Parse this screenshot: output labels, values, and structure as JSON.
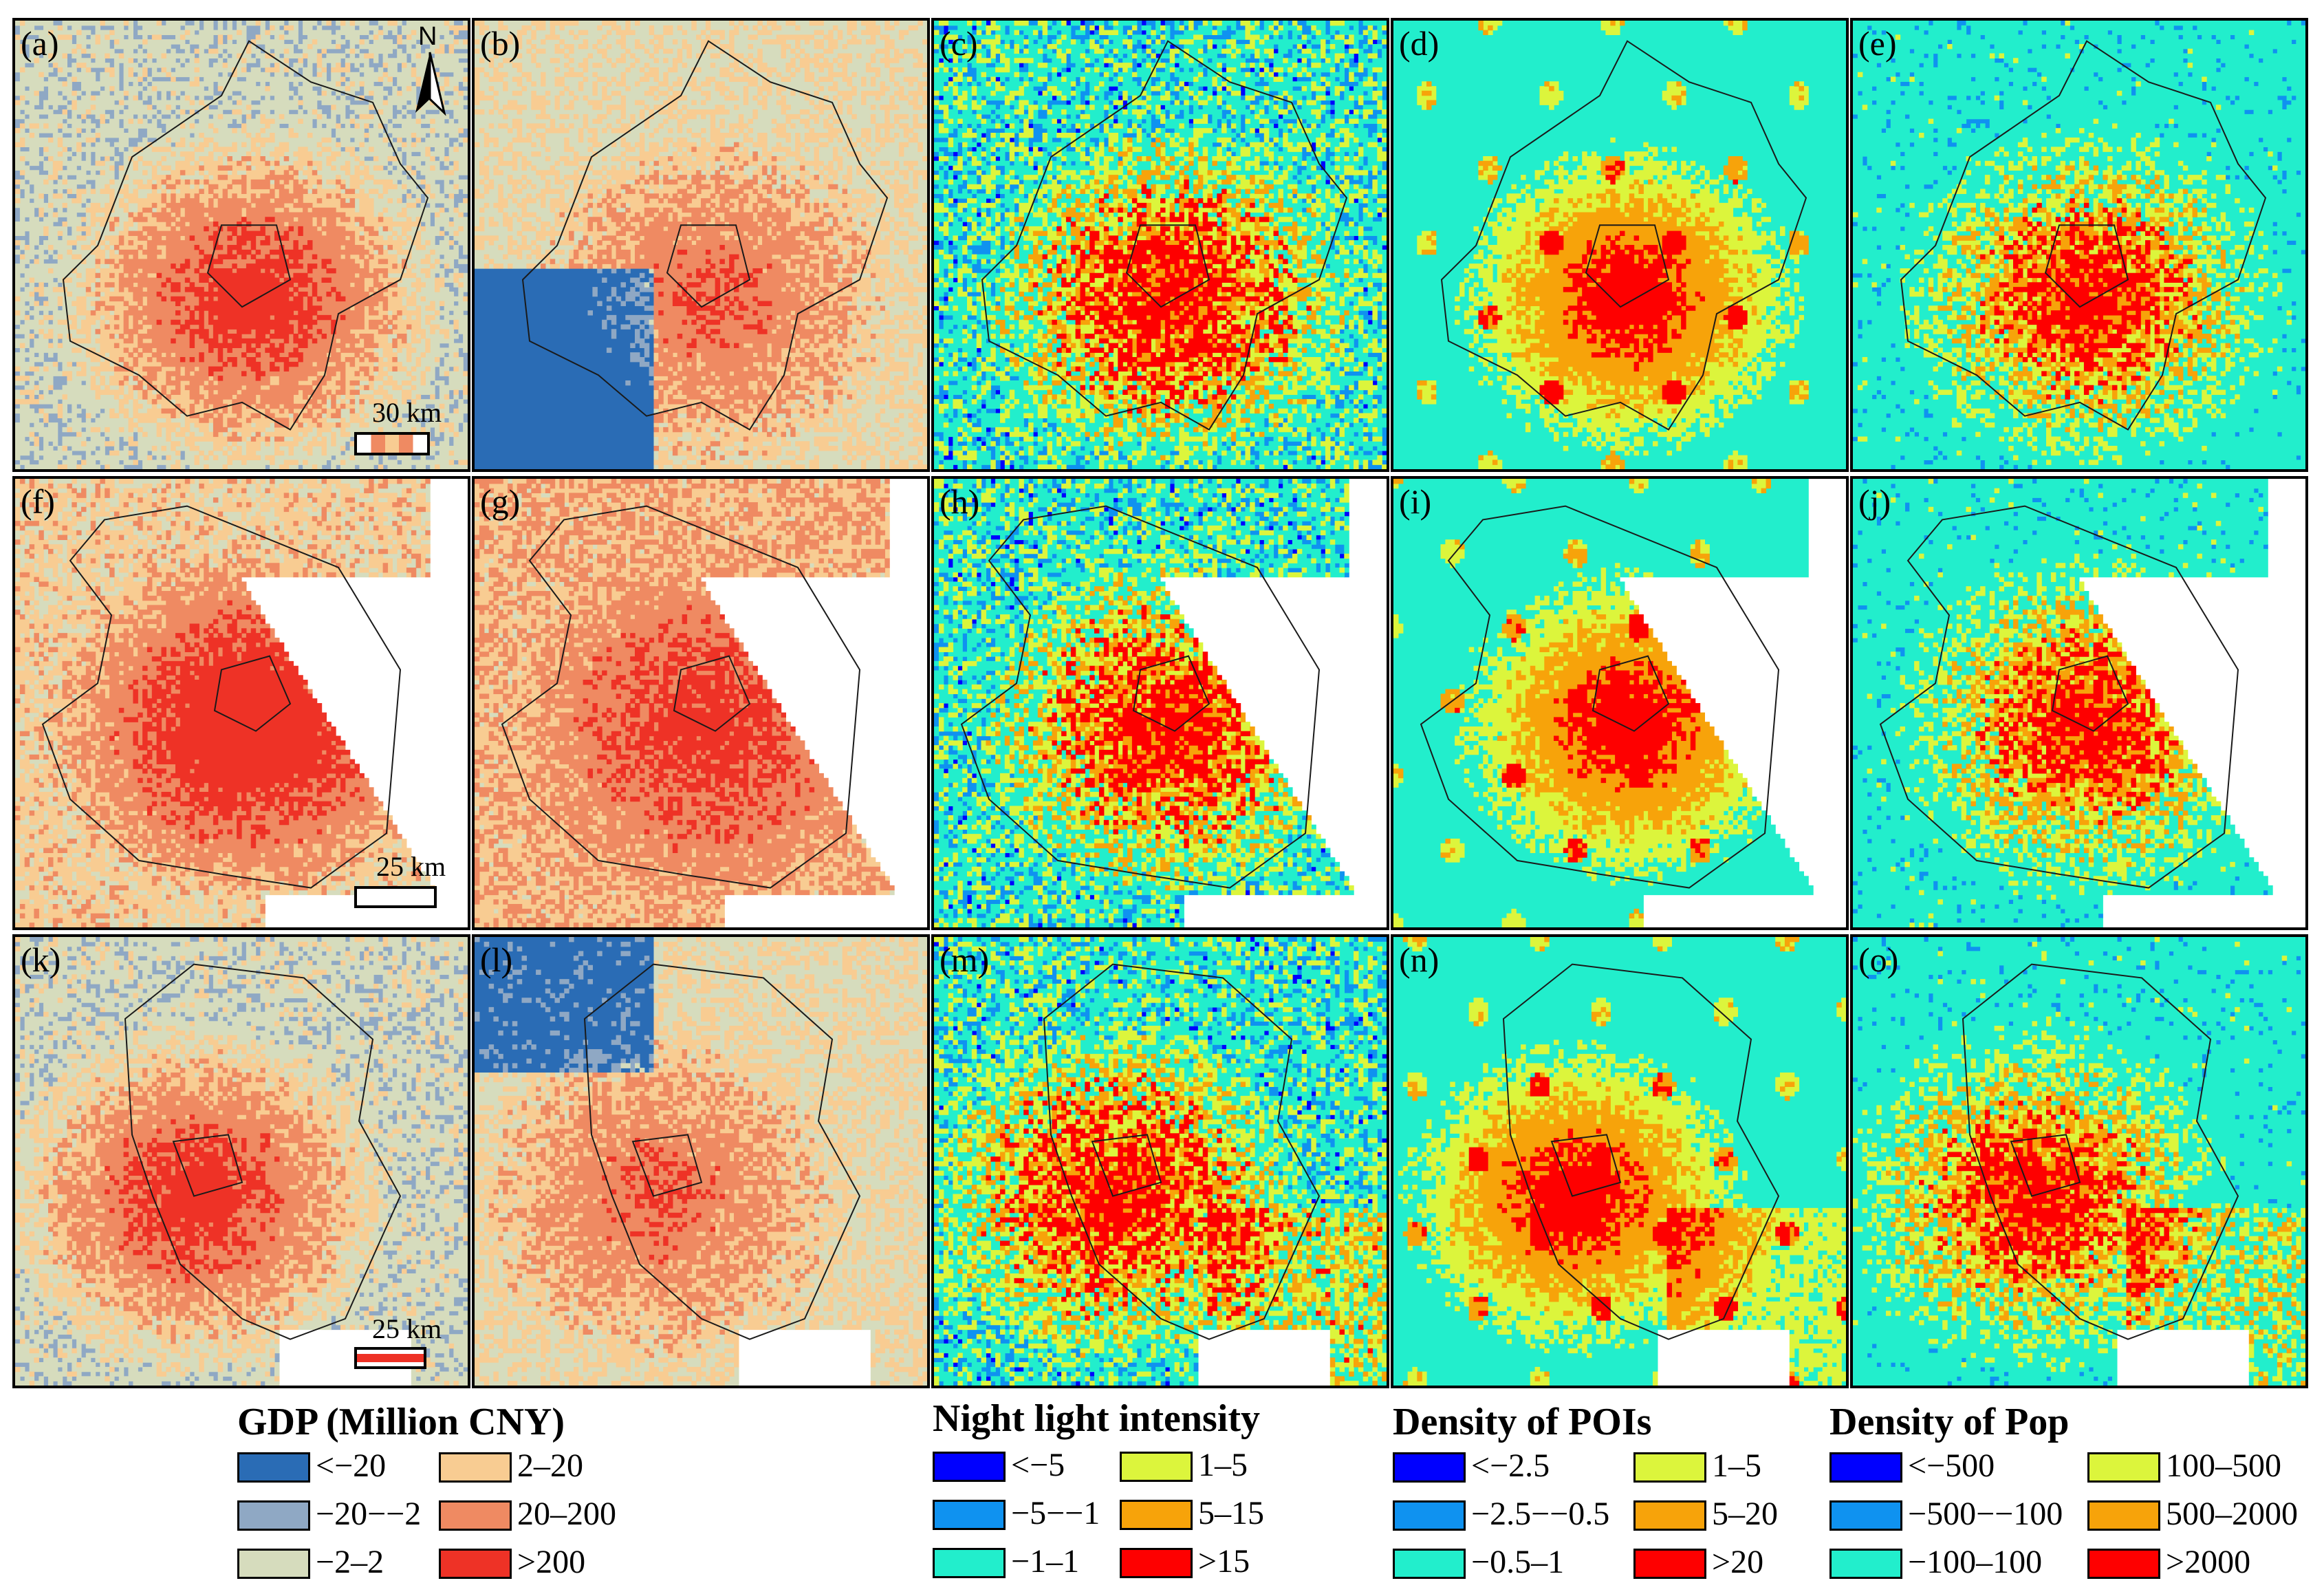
{
  "panels": [
    {
      "id": "a",
      "label": "(a)",
      "type": "gdp"
    },
    {
      "id": "b",
      "label": "(b)",
      "type": "gdp"
    },
    {
      "id": "c",
      "label": "(c)",
      "type": "nl"
    },
    {
      "id": "d",
      "label": "(d)",
      "type": "poi"
    },
    {
      "id": "e",
      "label": "(e)",
      "type": "pop"
    },
    {
      "id": "f",
      "label": "(f)",
      "type": "gdp"
    },
    {
      "id": "g",
      "label": "(g)",
      "type": "gdp"
    },
    {
      "id": "h",
      "label": "(h)",
      "type": "nl"
    },
    {
      "id": "i",
      "label": "(i)",
      "type": "poi"
    },
    {
      "id": "j",
      "label": "(j)",
      "type": "pop"
    },
    {
      "id": "k",
      "label": "(k)",
      "type": "gdp"
    },
    {
      "id": "l",
      "label": "(l)",
      "type": "gdp"
    },
    {
      "id": "m",
      "label": "(m)",
      "type": "nl"
    },
    {
      "id": "n",
      "label": "(n)",
      "type": "poi"
    },
    {
      "id": "o",
      "label": "(o)",
      "type": "pop"
    }
  ],
  "scale_bars": {
    "row1": "30  km",
    "row2": "25  km",
    "row3": "25  km"
  },
  "north_arrow": {
    "label": "N"
  },
  "legends": {
    "gdp": {
      "title": "GDP (Million CNY)",
      "items": [
        {
          "label": "<−20",
          "color": "#2a6cb5"
        },
        {
          "label": "−20−−2",
          "color": "#8fa8c4"
        },
        {
          "label": "−2–2",
          "color": "#d6dcbd"
        },
        {
          "label": "2–20",
          "color": "#f8cc92"
        },
        {
          "label": "20–200",
          "color": "#ef8a62"
        },
        {
          "label": ">200",
          "color": "#ee3226"
        }
      ]
    },
    "nl": {
      "title": "Night light intensity",
      "items": [
        {
          "label": "<−5",
          "color": "#0000ff"
        },
        {
          "label": "−5−−1",
          "color": "#0f92f0"
        },
        {
          "label": "−1–1",
          "color": "#22eecc"
        },
        {
          "label": "1–5",
          "color": "#dcf53c"
        },
        {
          "label": "5–15",
          "color": "#f7a30a"
        },
        {
          "label": ">15",
          "color": "#fe0000"
        }
      ]
    },
    "poi": {
      "title": "Density of POIs",
      "items": [
        {
          "label": "<−2.5",
          "color": "#0000ff"
        },
        {
          "label": "−2.5−−0.5",
          "color": "#0f92f0"
        },
        {
          "label": "−0.5–1",
          "color": "#22eecc"
        },
        {
          "label": "1–5",
          "color": "#dcf53c"
        },
        {
          "label": "5–20",
          "color": "#f7a30a"
        },
        {
          "label": ">20",
          "color": "#fe0000"
        }
      ]
    },
    "pop": {
      "title": "Density of Pop",
      "items": [
        {
          "label": "<−500",
          "color": "#0000ff"
        },
        {
          "label": "−500−−100",
          "color": "#0f92f0"
        },
        {
          "label": "−100–100",
          "color": "#22eecc"
        },
        {
          "label": "100–500",
          "color": "#dcf53c"
        },
        {
          "label": "500–2000",
          "color": "#f7a30a"
        },
        {
          "label": ">2000",
          "color": "#fe0000"
        }
      ]
    }
  }
}
